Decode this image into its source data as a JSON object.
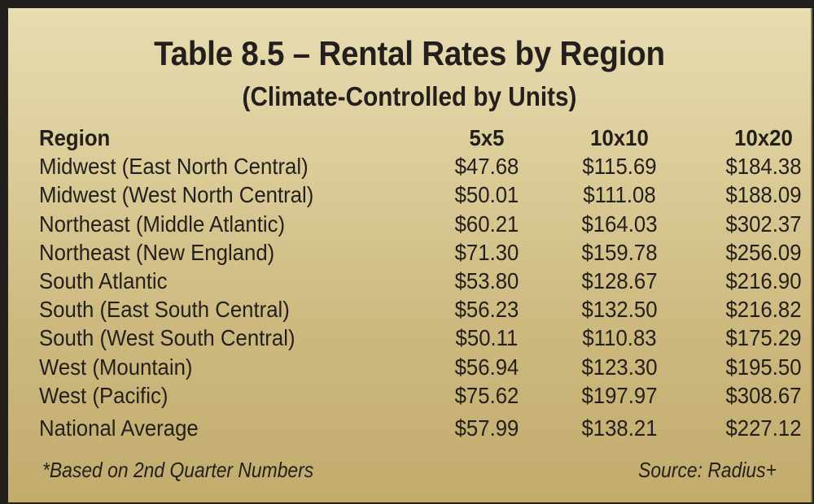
{
  "title": "Table 8.5 – Rental Rates by Region",
  "subtitle": "(Climate-Controlled by Units)",
  "headers": [
    "Region",
    "5x5",
    "10x10",
    "10x20"
  ],
  "rows": [
    {
      "region": "Midwest (East North Central)",
      "v": [
        "$47.68",
        "$115.69",
        "$184.38"
      ]
    },
    {
      "region": "Midwest (West North Central)",
      "v": [
        "$50.01",
        "$111.08",
        "$188.09"
      ]
    },
    {
      "region": "Northeast (Middle Atlantic)",
      "v": [
        "$60.21",
        "$164.03",
        "$302.37"
      ]
    },
    {
      "region": "Northeast (New England)",
      "v": [
        "$71.30",
        "$159.78",
        "$256.09"
      ]
    },
    {
      "region": "South Atlantic",
      "v": [
        "$53.80",
        "$128.67",
        "$216.90"
      ]
    },
    {
      "region": "South (East South Central)",
      "v": [
        "$56.23",
        "$132.50",
        "$216.82"
      ]
    },
    {
      "region": "South (West South Central)",
      "v": [
        "$50.11",
        "$110.83",
        "$175.29"
      ]
    },
    {
      "region": "West (Mountain)",
      "v": [
        "$56.94",
        "$123.30",
        "$195.50"
      ]
    },
    {
      "region": "West (Pacific)",
      "v": [
        "$75.62",
        "$197.97",
        "$308.67"
      ]
    },
    {
      "region": "National Average",
      "v": [
        "$57.99",
        "$138.21",
        "$227.12"
      ]
    }
  ],
  "footnote": "*Based on 2nd Quarter Numbers",
  "source": "Source: Radius+",
  "colors": {
    "text": "#231f1c",
    "border": "#231f1c",
    "bg_top": "#e7dcb2",
    "bg_bottom": "#c2ab6d"
  },
  "chart_data": {
    "type": "table",
    "title": "Table 8.5 – Rental Rates by Region",
    "subtitle": "(Climate-Controlled by Units)",
    "columns": [
      "Region",
      "5x5",
      "10x10",
      "10x20"
    ],
    "categories": [
      "Midwest (East North Central)",
      "Midwest (West North Central)",
      "Northeast (Middle Atlantic)",
      "Northeast (New England)",
      "South Atlantic",
      "South (East South Central)",
      "South (West South Central)",
      "West (Mountain)",
      "West (Pacific)",
      "National Average"
    ],
    "series": [
      {
        "name": "5x5",
        "values": [
          47.68,
          50.01,
          60.21,
          71.3,
          53.8,
          56.23,
          50.11,
          56.94,
          75.62,
          57.99
        ]
      },
      {
        "name": "10x10",
        "values": [
          115.69,
          111.08,
          164.03,
          159.78,
          128.67,
          132.5,
          110.83,
          123.3,
          197.97,
          138.21
        ]
      },
      {
        "name": "10x20",
        "values": [
          184.38,
          188.09,
          302.37,
          256.09,
          216.9,
          216.82,
          175.29,
          195.5,
          308.67,
          227.12
        ]
      }
    ],
    "annotations": [
      "*Based on 2nd Quarter Numbers",
      "Source: Radius+"
    ],
    "units": "USD"
  }
}
